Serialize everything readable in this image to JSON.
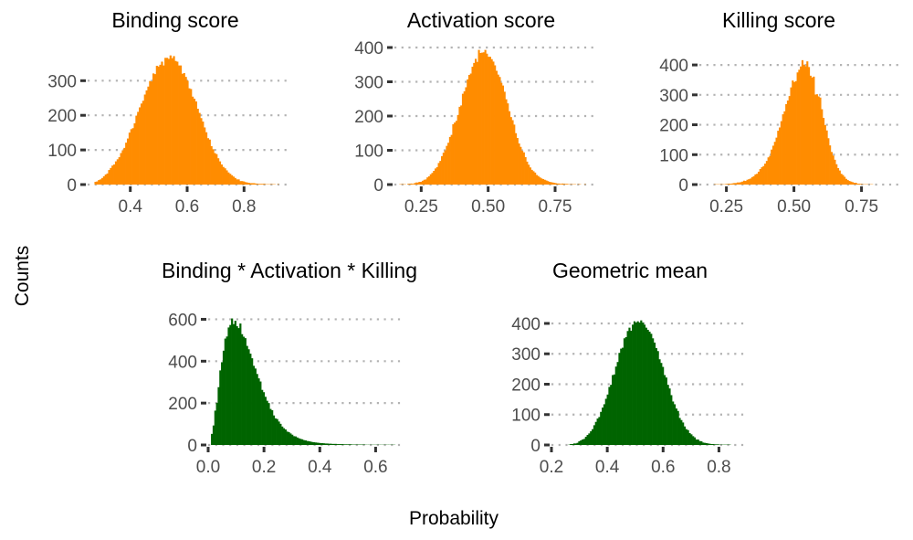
{
  "figure": {
    "xlabel": "Probability",
    "ylabel": "Counts",
    "bar_colors": {
      "orange": "#FF8C00",
      "green": "#006400"
    },
    "gridline_color": "#b3b3b3"
  },
  "chart_data": [
    {
      "type": "bar",
      "title": "Binding score",
      "xlim": [
        0.25,
        0.95
      ],
      "ylim": [
        0,
        380
      ],
      "x_ticks": [
        0.4,
        0.6,
        0.8
      ],
      "x_tick_labels": [
        "0.4",
        "0.6",
        "0.8"
      ],
      "y_ticks": [
        0,
        100,
        200,
        300
      ],
      "y_tick_labels": [
        "0",
        "100",
        "200",
        "300"
      ],
      "grid": "horizontal dotted",
      "color": "#FF8C00",
      "categories": [
        0.277,
        0.283,
        0.289,
        0.295,
        0.301,
        0.307,
        0.313,
        0.319,
        0.325,
        0.331,
        0.337,
        0.343,
        0.349,
        0.355,
        0.361,
        0.367,
        0.373,
        0.379,
        0.385,
        0.391,
        0.397,
        0.403,
        0.409,
        0.415,
        0.421,
        0.427,
        0.433,
        0.439,
        0.445,
        0.451,
        0.457,
        0.463,
        0.469,
        0.475,
        0.481,
        0.487,
        0.493,
        0.499,
        0.505,
        0.511,
        0.517,
        0.523,
        0.529,
        0.535,
        0.541,
        0.547,
        0.553,
        0.559,
        0.565,
        0.571,
        0.577,
        0.583,
        0.589,
        0.595,
        0.601,
        0.607,
        0.613,
        0.619,
        0.625,
        0.631,
        0.637,
        0.643,
        0.649,
        0.655,
        0.661,
        0.667,
        0.673,
        0.679,
        0.685,
        0.691,
        0.697,
        0.703,
        0.709,
        0.715,
        0.721,
        0.727,
        0.733,
        0.739,
        0.745,
        0.751,
        0.757,
        0.763,
        0.769,
        0.775,
        0.781,
        0.787,
        0.793,
        0.799,
        0.805,
        0.811,
        0.817,
        0.823,
        0.829,
        0.835,
        0.841,
        0.847,
        0.853,
        0.859,
        0.865,
        0.871,
        0.877,
        0.883,
        0.889,
        0.895,
        0.901,
        0.907,
        0.913,
        0.919,
        0.925,
        0.931,
        0.937
      ],
      "values": [
        8,
        9,
        13,
        15,
        19,
        24,
        29,
        32,
        42,
        48,
        55,
        58,
        67,
        73,
        79,
        91,
        99,
        106,
        121,
        133,
        150,
        160,
        163,
        177,
        199,
        210,
        223,
        234,
        242,
        260,
        272,
        283,
        299,
        298,
        321,
        319,
        343,
        341,
        346,
        355,
        344,
        366,
        366,
        363,
        373,
        365,
        371,
        357,
        355,
        344,
        344,
        320,
        322,
        311,
        300,
        278,
        276,
        254,
        248,
        240,
        219,
        207,
        192,
        182,
        165,
        151,
        134,
        130,
        111,
        102,
        91,
        88,
        76,
        67,
        58,
        51,
        47,
        41,
        35,
        31,
        27,
        23,
        19,
        15,
        15,
        10,
        10,
        9,
        7,
        6,
        5,
        4,
        4,
        4,
        3,
        2,
        2,
        2,
        2,
        2,
        1,
        1,
        1,
        1,
        1,
        1,
        0,
        1,
        0,
        0,
        0
      ]
    },
    {
      "type": "bar",
      "title": "Activation score",
      "xlim": [
        0.15,
        0.9
      ],
      "ylim": [
        0,
        400
      ],
      "x_ticks": [
        0.25,
        0.5,
        0.75
      ],
      "x_tick_labels": [
        "0.25",
        "0.50",
        "0.75"
      ],
      "y_ticks": [
        0,
        100,
        200,
        300,
        400
      ],
      "y_tick_labels": [
        "0",
        "100",
        "200",
        "300",
        "400"
      ],
      "grid": "horizontal dotted",
      "color": "#FF8C00",
      "categories": [
        0.165,
        0.171,
        0.177,
        0.183,
        0.189,
        0.195,
        0.201,
        0.207,
        0.213,
        0.219,
        0.225,
        0.231,
        0.237,
        0.243,
        0.249,
        0.255,
        0.261,
        0.267,
        0.273,
        0.279,
        0.285,
        0.291,
        0.297,
        0.303,
        0.309,
        0.315,
        0.321,
        0.327,
        0.333,
        0.339,
        0.345,
        0.351,
        0.357,
        0.363,
        0.369,
        0.375,
        0.381,
        0.387,
        0.393,
        0.399,
        0.405,
        0.411,
        0.417,
        0.423,
        0.429,
        0.435,
        0.441,
        0.447,
        0.453,
        0.459,
        0.465,
        0.471,
        0.477,
        0.483,
        0.489,
        0.495,
        0.501,
        0.507,
        0.513,
        0.519,
        0.525,
        0.531,
        0.537,
        0.543,
        0.549,
        0.555,
        0.561,
        0.567,
        0.573,
        0.579,
        0.585,
        0.591,
        0.597,
        0.603,
        0.609,
        0.615,
        0.621,
        0.627,
        0.633,
        0.639,
        0.645,
        0.651,
        0.657,
        0.663,
        0.669,
        0.675,
        0.681,
        0.687,
        0.693,
        0.699,
        0.705,
        0.711,
        0.717,
        0.723,
        0.729,
        0.735,
        0.741,
        0.747,
        0.753,
        0.759,
        0.765,
        0.771,
        0.777,
        0.783,
        0.789,
        0.795,
        0.801,
        0.807,
        0.813,
        0.819,
        0.825,
        0.831,
        0.837,
        0.843,
        0.849,
        0.855,
        0.861,
        0.867,
        0.873,
        0.879,
        0.885
      ],
      "values": [
        0,
        1,
        1,
        1,
        1,
        0,
        2,
        2,
        3,
        2,
        4,
        6,
        6,
        8,
        8,
        11,
        14,
        15,
        21,
        24,
        30,
        34,
        40,
        47,
        51,
        63,
        69,
        83,
        93,
        100,
        113,
        122,
        139,
        145,
        176,
        181,
        186,
        203,
        227,
        231,
        265,
        272,
        284,
        307,
        320,
        324,
        344,
        355,
        367,
        358,
        393,
        384,
        385,
        386,
        393,
        382,
        373,
        373,
        366,
        359,
        348,
        332,
        321,
        314,
        297,
        289,
        271,
        249,
        237,
        214,
        197,
        188,
        175,
        150,
        136,
        120,
        110,
        99,
        94,
        80,
        67,
        58,
        50,
        43,
        39,
        35,
        28,
        25,
        21,
        18,
        16,
        14,
        12,
        10,
        8,
        7,
        6,
        5,
        4,
        3,
        3,
        2,
        3,
        2,
        2,
        2,
        1,
        1,
        1,
        1,
        1,
        0,
        1,
        1,
        0,
        0,
        1,
        0,
        0,
        0,
        0
      ]
    },
    {
      "type": "bar",
      "title": "Killing score",
      "xlim": [
        0.15,
        0.9
      ],
      "ylim": [
        0,
        440
      ],
      "x_ticks": [
        0.25,
        0.5,
        0.75
      ],
      "x_tick_labels": [
        "0.25",
        "0.50",
        "0.75"
      ],
      "y_ticks": [
        0,
        100,
        200,
        300,
        400
      ],
      "y_tick_labels": [
        "0",
        "100",
        "200",
        "300",
        "400"
      ],
      "grid": "horizontal dotted",
      "color": "#FF8C00",
      "categories": [
        0.165,
        0.171,
        0.177,
        0.183,
        0.189,
        0.195,
        0.201,
        0.207,
        0.213,
        0.219,
        0.225,
        0.231,
        0.237,
        0.243,
        0.249,
        0.255,
        0.261,
        0.267,
        0.273,
        0.279,
        0.285,
        0.291,
        0.297,
        0.303,
        0.309,
        0.315,
        0.321,
        0.327,
        0.333,
        0.339,
        0.345,
        0.351,
        0.357,
        0.363,
        0.369,
        0.375,
        0.381,
        0.387,
        0.393,
        0.399,
        0.405,
        0.411,
        0.417,
        0.423,
        0.429,
        0.435,
        0.441,
        0.447,
        0.453,
        0.459,
        0.465,
        0.471,
        0.477,
        0.483,
        0.489,
        0.495,
        0.501,
        0.507,
        0.513,
        0.519,
        0.525,
        0.531,
        0.537,
        0.543,
        0.549,
        0.555,
        0.561,
        0.567,
        0.573,
        0.579,
        0.585,
        0.591,
        0.597,
        0.603,
        0.609,
        0.615,
        0.621,
        0.627,
        0.633,
        0.639,
        0.645,
        0.651,
        0.657,
        0.663,
        0.669,
        0.675,
        0.681,
        0.687,
        0.693,
        0.699,
        0.705,
        0.711,
        0.717,
        0.723,
        0.729,
        0.735,
        0.741,
        0.747,
        0.753,
        0.759,
        0.765,
        0.771,
        0.777,
        0.783,
        0.789,
        0.795,
        0.801,
        0.807,
        0.813,
        0.819,
        0.825,
        0.831,
        0.837,
        0.843,
        0.849,
        0.855,
        0.861,
        0.867,
        0.873,
        0.879,
        0.885
      ],
      "values": [
        0,
        0,
        0,
        0,
        0,
        0,
        0,
        1,
        1,
        1,
        1,
        1,
        1,
        1,
        2,
        2,
        3,
        3,
        4,
        5,
        5,
        7,
        7,
        8,
        10,
        13,
        12,
        16,
        18,
        20,
        25,
        28,
        34,
        36,
        43,
        52,
        58,
        62,
        70,
        79,
        91,
        96,
        117,
        130,
        143,
        157,
        180,
        191,
        212,
        235,
        245,
        269,
        281,
        296,
        325,
        348,
        343,
        346,
        375,
        384,
        395,
        416,
        401,
        396,
        412,
        393,
        364,
        358,
        361,
        301,
        302,
        295,
        291,
        252,
        223,
        199,
        181,
        155,
        131,
        109,
        97,
        83,
        68,
        55,
        47,
        36,
        32,
        26,
        19,
        15,
        12,
        10,
        8,
        6,
        6,
        3,
        3,
        2,
        1,
        1,
        1,
        1,
        0,
        1,
        1,
        0,
        0,
        0,
        0,
        0,
        0,
        0,
        0,
        0,
        0,
        0,
        0,
        0,
        0,
        0,
        0
      ]
    },
    {
      "type": "bar",
      "title": "Binding * Activation * Killing",
      "xlim": [
        0,
        0.7
      ],
      "ylim": [
        0,
        650
      ],
      "x_ticks": [
        0,
        0.2,
        0.4,
        0.6
      ],
      "x_tick_labels": [
        "0.0",
        "0.2",
        "0.4",
        "0.6"
      ],
      "y_ticks": [
        0,
        200,
        400,
        600
      ],
      "y_tick_labels": [
        "0",
        "200",
        "400",
        "600"
      ],
      "grid": "horizontal dotted",
      "color": "#006400",
      "categories": [
        0.013,
        0.019,
        0.025,
        0.031,
        0.037,
        0.043,
        0.049,
        0.055,
        0.061,
        0.067,
        0.073,
        0.079,
        0.085,
        0.091,
        0.097,
        0.103,
        0.109,
        0.115,
        0.121,
        0.127,
        0.133,
        0.139,
        0.145,
        0.151,
        0.157,
        0.163,
        0.169,
        0.175,
        0.181,
        0.187,
        0.193,
        0.199,
        0.205,
        0.211,
        0.217,
        0.223,
        0.229,
        0.235,
        0.241,
        0.247,
        0.253,
        0.259,
        0.265,
        0.271,
        0.277,
        0.283,
        0.289,
        0.295,
        0.301,
        0.307,
        0.313,
        0.319,
        0.325,
        0.331,
        0.337,
        0.343,
        0.349,
        0.355,
        0.361,
        0.367,
        0.373,
        0.379,
        0.385,
        0.391,
        0.397,
        0.403,
        0.409,
        0.415,
        0.421,
        0.427,
        0.433,
        0.439,
        0.445,
        0.451,
        0.457,
        0.463,
        0.469,
        0.475,
        0.481,
        0.487,
        0.493,
        0.499,
        0.505,
        0.511,
        0.517,
        0.523,
        0.529,
        0.535,
        0.541,
        0.547,
        0.553,
        0.559,
        0.565,
        0.571,
        0.577,
        0.583,
        0.589,
        0.595,
        0.601,
        0.607,
        0.613,
        0.619,
        0.625,
        0.631,
        0.637,
        0.643,
        0.649,
        0.655,
        0.661,
        0.667
      ],
      "values": [
        53,
        93,
        164,
        201,
        276,
        356,
        395,
        450,
        508,
        518,
        561,
        573,
        604,
        577,
        593,
        567,
        558,
        580,
        529,
        517,
        510,
        473,
        457,
        436,
        414,
        378,
        365,
        339,
        318,
        303,
        263,
        252,
        230,
        211,
        200,
        172,
        166,
        141,
        127,
        124,
        112,
        101,
        88,
        80,
        74,
        64,
        61,
        55,
        49,
        42,
        41,
        36,
        32,
        29,
        27,
        23,
        22,
        19,
        18,
        16,
        14,
        13,
        12,
        11,
        10,
        9,
        9,
        8,
        7,
        7,
        6,
        6,
        5,
        5,
        5,
        4,
        4,
        4,
        4,
        3,
        3,
        3,
        3,
        3,
        2,
        2,
        2,
        2,
        2,
        2,
        2,
        2,
        1,
        1,
        1,
        1,
        1,
        1,
        1,
        1,
        1,
        1,
        1,
        1,
        1,
        1,
        1,
        1,
        1,
        1
      ]
    },
    {
      "type": "bar",
      "title": "Geometric mean",
      "xlim": [
        0.2,
        0.9
      ],
      "ylim": [
        0,
        430
      ],
      "x_ticks": [
        0.2,
        0.4,
        0.6,
        0.8
      ],
      "x_tick_labels": [
        "0.2",
        "0.4",
        "0.6",
        "0.8"
      ],
      "y_ticks": [
        0,
        100,
        200,
        300,
        400
      ],
      "y_tick_labels": [
        "0",
        "100",
        "200",
        "300",
        "400"
      ],
      "grid": "horizontal dotted",
      "color": "#006400",
      "categories": [
        0.263,
        0.269,
        0.275,
        0.281,
        0.287,
        0.293,
        0.299,
        0.305,
        0.311,
        0.317,
        0.323,
        0.329,
        0.335,
        0.341,
        0.347,
        0.353,
        0.359,
        0.365,
        0.371,
        0.377,
        0.383,
        0.389,
        0.395,
        0.401,
        0.407,
        0.413,
        0.419,
        0.425,
        0.431,
        0.437,
        0.443,
        0.449,
        0.455,
        0.461,
        0.467,
        0.473,
        0.479,
        0.485,
        0.491,
        0.497,
        0.503,
        0.509,
        0.515,
        0.521,
        0.527,
        0.533,
        0.539,
        0.545,
        0.551,
        0.557,
        0.563,
        0.569,
        0.575,
        0.581,
        0.587,
        0.593,
        0.599,
        0.605,
        0.611,
        0.617,
        0.623,
        0.629,
        0.635,
        0.641,
        0.647,
        0.653,
        0.659,
        0.665,
        0.671,
        0.677,
        0.683,
        0.689,
        0.695,
        0.701,
        0.707,
        0.713,
        0.719,
        0.725,
        0.731,
        0.737,
        0.743,
        0.749,
        0.755,
        0.761,
        0.767,
        0.773,
        0.779,
        0.785,
        0.791,
        0.797,
        0.803,
        0.809,
        0.815,
        0.821,
        0.827,
        0.833,
        0.839,
        0.845,
        0.851,
        0.857,
        0.863,
        0.869,
        0.875,
        0.881,
        0.887
      ],
      "values": [
        1,
        3,
        3,
        5,
        5,
        7,
        12,
        15,
        18,
        20,
        27,
        33,
        38,
        45,
        52,
        65,
        76,
        87,
        92,
        109,
        123,
        134,
        152,
        166,
        191,
        198,
        230,
        232,
        258,
        273,
        303,
        317,
        320,
        351,
        355,
        375,
        386,
        376,
        396,
        407,
        403,
        407,
        403,
        410,
        403,
        396,
        386,
        379,
        373,
        366,
        351,
        337,
        319,
        309,
        282,
        270,
        257,
        230,
        222,
        198,
        186,
        164,
        143,
        134,
        120,
        112,
        89,
        82,
        74,
        61,
        52,
        49,
        39,
        35,
        29,
        25,
        18,
        18,
        13,
        12,
        8,
        7,
        6,
        5,
        4,
        3,
        3,
        2,
        2,
        2,
        1,
        1,
        1,
        1,
        1,
        1,
        1,
        0,
        0,
        0,
        0,
        0,
        0,
        0,
        0
      ]
    }
  ]
}
